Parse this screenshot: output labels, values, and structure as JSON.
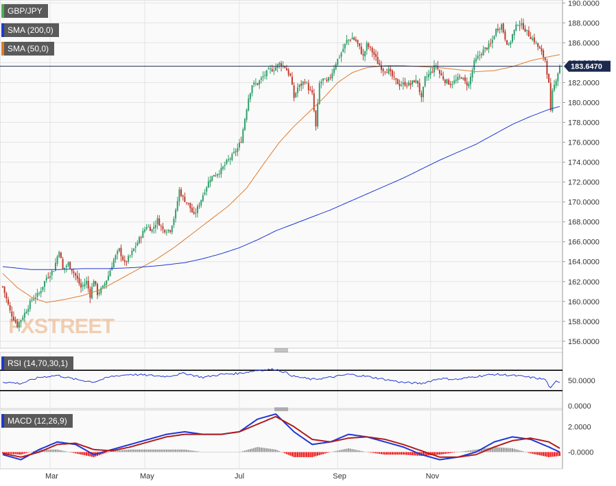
{
  "chart_data": [
    {
      "type": "candlestick",
      "symbol": "GBP/JPY",
      "indicators": [
        {
          "name": "SMA (200,0)",
          "color": "#1f35d6"
        },
        {
          "name": "SMA (50,0)",
          "color": "#e07b2c"
        }
      ],
      "last_price": "183.6470",
      "last_value": 183.647,
      "y_ticks": [
        "190.0000",
        "188.0000",
        "186.0000",
        "184.0000",
        "182.0000",
        "180.0000",
        "178.0000",
        "176.0000",
        "174.0000",
        "172.0000",
        "170.0000",
        "168.0000",
        "166.0000",
        "164.0000",
        "162.0000",
        "160.0000",
        "158.0000",
        "156.0000"
      ],
      "ylim": [
        155.3,
        190.3
      ],
      "x_ticks": [
        "Mar",
        "May",
        "Jul",
        "Sep",
        "Nov"
      ],
      "watermark": "FXSTREET",
      "price_path": [
        [
          0,
          161.5
        ],
        [
          4,
          159.0
        ],
        [
          8,
          157.6
        ],
        [
          12,
          158.8
        ],
        [
          16,
          160.2
        ],
        [
          20,
          160.8
        ],
        [
          24,
          162.4
        ],
        [
          28,
          163.2
        ],
        [
          31,
          165.2
        ],
        [
          33,
          163.2
        ],
        [
          36,
          163.8
        ],
        [
          40,
          162.6
        ],
        [
          43,
          161.4
        ],
        [
          46,
          162.0
        ],
        [
          48,
          160.6
        ],
        [
          50,
          162.2
        ],
        [
          52,
          160.8
        ],
        [
          55,
          161.4
        ],
        [
          58,
          162.6
        ],
        [
          61,
          164.2
        ],
        [
          64,
          165.2
        ],
        [
          67,
          163.8
        ],
        [
          70,
          164.6
        ],
        [
          73,
          165.6
        ],
        [
          76,
          166.6
        ],
        [
          79,
          167.6
        ],
        [
          82,
          167.2
        ],
        [
          85,
          168.2
        ],
        [
          88,
          167.2
        ],
        [
          92,
          167.2
        ],
        [
          95,
          169.0
        ],
        [
          97,
          171.2
        ],
        [
          99,
          170.4
        ],
        [
          102,
          169.8
        ],
        [
          105,
          168.6
        ],
        [
          108,
          169.8
        ],
        [
          111,
          171.2
        ],
        [
          114,
          172.4
        ],
        [
          117,
          172.8
        ],
        [
          120,
          173.2
        ],
        [
          123,
          174.0
        ],
        [
          126,
          174.6
        ],
        [
          129,
          175.4
        ],
        [
          131,
          176.2
        ],
        [
          133,
          178.4
        ],
        [
          135,
          180.5
        ],
        [
          137,
          181.8
        ],
        [
          140,
          181.9
        ],
        [
          143,
          182.6
        ],
        [
          146,
          183.2
        ],
        [
          149,
          183.4
        ],
        [
          152,
          183.9
        ],
        [
          155,
          183.6
        ],
        [
          158,
          182.6
        ],
        [
          160,
          180.5
        ],
        [
          162,
          181.5
        ],
        [
          164,
          181.8
        ],
        [
          166,
          182.2
        ],
        [
          168,
          181.4
        ],
        [
          170,
          180.8
        ],
        [
          172,
          177.5
        ],
        [
          174,
          181.9
        ],
        [
          176,
          182.3
        ],
        [
          178,
          182.0
        ],
        [
          180,
          182.6
        ],
        [
          183,
          184.0
        ],
        [
          186,
          185.0
        ],
        [
          189,
          186.2
        ],
        [
          192,
          186.5
        ],
        [
          194,
          186.2
        ],
        [
          196,
          185.5
        ],
        [
          198,
          184.6
        ],
        [
          200,
          185.8
        ],
        [
          202,
          185.4
        ],
        [
          204,
          184.8
        ],
        [
          206,
          184.0
        ],
        [
          209,
          183.3
        ],
        [
          212,
          183.2
        ],
        [
          215,
          182.3
        ],
        [
          218,
          181.8
        ],
        [
          221,
          181.9
        ],
        [
          224,
          181.8
        ],
        [
          226,
          182.2
        ],
        [
          228,
          182.0
        ],
        [
          230,
          180.3
        ],
        [
          232,
          182.4
        ],
        [
          235,
          183.0
        ],
        [
          238,
          183.8
        ],
        [
          240,
          182.9
        ],
        [
          243,
          182.2
        ],
        [
          246,
          181.9
        ],
        [
          249,
          182.2
        ],
        [
          252,
          182.6
        ],
        [
          254,
          182.0
        ],
        [
          256,
          181.8
        ],
        [
          259,
          184.0
        ],
        [
          262,
          184.8
        ],
        [
          265,
          185.4
        ],
        [
          268,
          185.8
        ],
        [
          271,
          187.3
        ],
        [
          274,
          187.8
        ],
        [
          276,
          186.5
        ],
        [
          278,
          185.6
        ],
        [
          280,
          186.8
        ],
        [
          283,
          188.0
        ],
        [
          286,
          187.6
        ],
        [
          289,
          186.8
        ],
        [
          292,
          186.2
        ],
        [
          295,
          185.3
        ],
        [
          298,
          184.3
        ],
        [
          300,
          181.8
        ],
        [
          301,
          179.0
        ],
        [
          302,
          181.0
        ],
        [
          304,
          182.4
        ],
        [
          306,
          183.65
        ]
      ],
      "sma50_path": [
        [
          0,
          162.8
        ],
        [
          8,
          161.4
        ],
        [
          16,
          160.4
        ],
        [
          24,
          159.9
        ],
        [
          34,
          160.2
        ],
        [
          44,
          160.6
        ],
        [
          54,
          161.2
        ],
        [
          64,
          162.2
        ],
        [
          74,
          163.2
        ],
        [
          84,
          164.2
        ],
        [
          94,
          165.4
        ],
        [
          104,
          166.8
        ],
        [
          114,
          168.2
        ],
        [
          124,
          169.6
        ],
        [
          134,
          171.4
        ],
        [
          144,
          174.0
        ],
        [
          152,
          176.0
        ],
        [
          160,
          177.6
        ],
        [
          168,
          179.0
        ],
        [
          176,
          180.4
        ],
        [
          184,
          182.0
        ],
        [
          192,
          183.0
        ],
        [
          200,
          183.5
        ],
        [
          210,
          183.7
        ],
        [
          220,
          183.7
        ],
        [
          230,
          183.6
        ],
        [
          240,
          183.5
        ],
        [
          250,
          183.3
        ],
        [
          260,
          183.1
        ],
        [
          270,
          183.2
        ],
        [
          280,
          183.6
        ],
        [
          290,
          184.2
        ],
        [
          300,
          184.6
        ],
        [
          306,
          184.8
        ]
      ],
      "sma200_path": [
        [
          0,
          163.5
        ],
        [
          16,
          163.2
        ],
        [
          30,
          163.2
        ],
        [
          44,
          163.3
        ],
        [
          58,
          163.3
        ],
        [
          72,
          163.4
        ],
        [
          86,
          163.6
        ],
        [
          100,
          163.9
        ],
        [
          110,
          164.3
        ],
        [
          120,
          164.8
        ],
        [
          130,
          165.4
        ],
        [
          140,
          166.2
        ],
        [
          150,
          167.1
        ],
        [
          160,
          167.8
        ],
        [
          170,
          168.5
        ],
        [
          180,
          169.2
        ],
        [
          190,
          170.0
        ],
        [
          200,
          170.8
        ],
        [
          210,
          171.6
        ],
        [
          220,
          172.4
        ],
        [
          230,
          173.3
        ],
        [
          240,
          174.2
        ],
        [
          250,
          175.0
        ],
        [
          260,
          175.8
        ],
        [
          270,
          176.8
        ],
        [
          280,
          177.8
        ],
        [
          290,
          178.6
        ],
        [
          300,
          179.3
        ],
        [
          306,
          179.6
        ]
      ]
    },
    {
      "type": "line",
      "name": "RSI (14,70,30,1)",
      "y_ticks": [
        "50.0000",
        "0.0000"
      ],
      "ylim": [
        0,
        100
      ],
      "levels": [
        70,
        30
      ],
      "rsi_path": [
        [
          0,
          47
        ],
        [
          10,
          44
        ],
        [
          20,
          56
        ],
        [
          30,
          60
        ],
        [
          40,
          52
        ],
        [
          50,
          47
        ],
        [
          60,
          58
        ],
        [
          70,
          62
        ],
        [
          80,
          60
        ],
        [
          90,
          58
        ],
        [
          100,
          64
        ],
        [
          110,
          56
        ],
        [
          120,
          62
        ],
        [
          130,
          64
        ],
        [
          140,
          70
        ],
        [
          150,
          72
        ],
        [
          155,
          66
        ],
        [
          160,
          58
        ],
        [
          170,
          52
        ],
        [
          180,
          56
        ],
        [
          190,
          62
        ],
        [
          200,
          58
        ],
        [
          210,
          52
        ],
        [
          220,
          46
        ],
        [
          230,
          44
        ],
        [
          240,
          54
        ],
        [
          250,
          52
        ],
        [
          260,
          58
        ],
        [
          270,
          62
        ],
        [
          280,
          60
        ],
        [
          290,
          56
        ],
        [
          298,
          52
        ],
        [
          300,
          40
        ],
        [
          301,
          34
        ],
        [
          304,
          48
        ]
      ]
    },
    {
      "type": "line",
      "name": "MACD (12,26,9)",
      "y_ticks": [
        "2.0000",
        "-0.0000"
      ],
      "ylim": [
        -1.0,
        3.0
      ],
      "macd_path": [
        [
          0,
          -0.2
        ],
        [
          10,
          -0.6
        ],
        [
          20,
          0.2
        ],
        [
          30,
          0.8
        ],
        [
          40,
          0.6
        ],
        [
          50,
          -0.2
        ],
        [
          60,
          0.2
        ],
        [
          70,
          0.6
        ],
        [
          80,
          1.0
        ],
        [
          90,
          1.4
        ],
        [
          100,
          1.6
        ],
        [
          110,
          1.4
        ],
        [
          120,
          1.4
        ],
        [
          130,
          1.6
        ],
        [
          140,
          2.6
        ],
        [
          150,
          3.0
        ],
        [
          160,
          1.6
        ],
        [
          170,
          0.6
        ],
        [
          180,
          0.8
        ],
        [
          190,
          1.4
        ],
        [
          200,
          1.2
        ],
        [
          210,
          0.8
        ],
        [
          220,
          0.4
        ],
        [
          230,
          -0.2
        ],
        [
          240,
          -0.6
        ],
        [
          250,
          -0.4
        ],
        [
          260,
          0.0
        ],
        [
          270,
          0.8
        ],
        [
          280,
          1.2
        ],
        [
          290,
          1.0
        ],
        [
          300,
          0.4
        ],
        [
          306,
          0.0
        ]
      ],
      "signal_path": [
        [
          0,
          -0.1
        ],
        [
          10,
          -0.4
        ],
        [
          20,
          0.0
        ],
        [
          30,
          0.6
        ],
        [
          40,
          0.7
        ],
        [
          50,
          0.2
        ],
        [
          60,
          0.1
        ],
        [
          70,
          0.4
        ],
        [
          80,
          0.8
        ],
        [
          90,
          1.2
        ],
        [
          100,
          1.4
        ],
        [
          110,
          1.4
        ],
        [
          120,
          1.4
        ],
        [
          130,
          1.6
        ],
        [
          140,
          2.2
        ],
        [
          150,
          2.8
        ],
        [
          160,
          2.0
        ],
        [
          170,
          1.0
        ],
        [
          180,
          0.8
        ],
        [
          190,
          1.1
        ],
        [
          200,
          1.2
        ],
        [
          210,
          1.0
        ],
        [
          220,
          0.6
        ],
        [
          230,
          0.1
        ],
        [
          240,
          -0.4
        ],
        [
          250,
          -0.4
        ],
        [
          260,
          -0.2
        ],
        [
          270,
          0.4
        ],
        [
          280,
          0.9
        ],
        [
          290,
          1.1
        ],
        [
          300,
          0.8
        ],
        [
          306,
          0.3
        ]
      ]
    }
  ]
}
